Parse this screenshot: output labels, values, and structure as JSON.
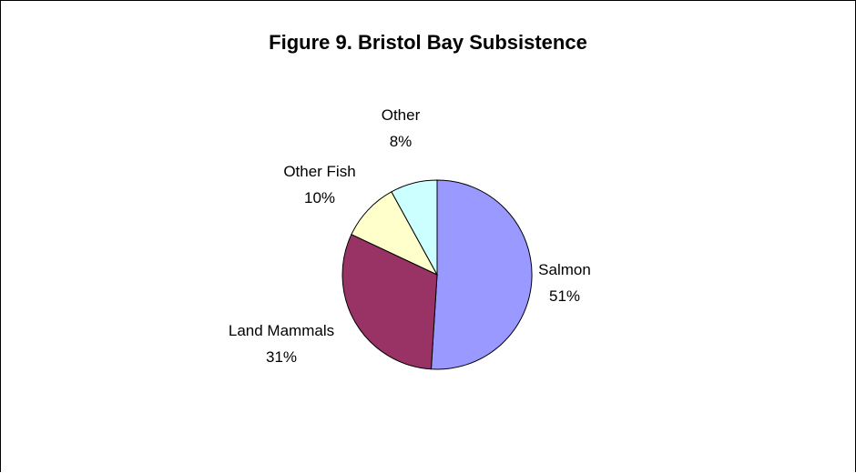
{
  "chart_data": {
    "type": "pie",
    "title": "Figure 9. Bristol Bay Subsistence",
    "slices": [
      {
        "label": "Salmon",
        "value": 51,
        "value_text": "51%",
        "color": "#9999ff"
      },
      {
        "label": "Land Mammals",
        "value": 31,
        "value_text": "31%",
        "color": "#993366"
      },
      {
        "label": "Other Fish",
        "value": 10,
        "value_text": "10%",
        "color": "#ffffcc"
      },
      {
        "label": "Other",
        "value": 8,
        "value_text": "8%",
        "color": "#ccffff"
      }
    ],
    "start_angle": "12 o'clock",
    "direction": "clockwise",
    "legend": "none",
    "data_labels": "outside"
  }
}
